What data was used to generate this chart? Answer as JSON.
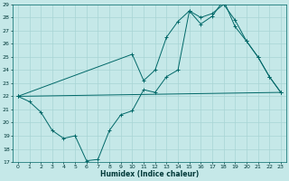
{
  "xlabel": "Humidex (Indice chaleur)",
  "bg_color": "#c5e8e8",
  "grid_color": "#a8d4d4",
  "line_color": "#006868",
  "ylim": [
    17,
    29
  ],
  "xlim": [
    -0.5,
    23.5
  ],
  "yticks": [
    17,
    18,
    19,
    20,
    21,
    22,
    23,
    24,
    25,
    26,
    27,
    28,
    29
  ],
  "xticks": [
    0,
    1,
    2,
    3,
    4,
    5,
    6,
    7,
    8,
    9,
    10,
    11,
    12,
    13,
    14,
    15,
    16,
    17,
    18,
    19,
    20,
    21,
    22,
    23
  ],
  "series1_x": [
    0,
    1,
    2,
    3,
    4,
    5,
    6,
    7,
    8,
    9,
    10,
    11,
    12,
    13,
    14,
    15,
    16,
    17,
    18,
    19,
    20,
    21,
    22,
    23
  ],
  "series1_y": [
    22,
    21.6,
    20.8,
    19.4,
    18.8,
    19.0,
    17.1,
    17.2,
    19.4,
    20.6,
    20.9,
    22.5,
    22.3,
    23.5,
    24.0,
    28.5,
    27.5,
    28.1,
    29.3,
    27.3,
    26.2,
    25.0,
    23.5,
    22.3
  ],
  "series2_x": [
    0,
    23
  ],
  "series2_y": [
    22,
    22.3
  ],
  "series3_x": [
    0,
    10,
    11,
    12,
    13,
    14,
    15,
    16,
    17,
    18,
    19,
    20,
    21,
    22,
    23
  ],
  "series3_y": [
    22,
    25.2,
    23.2,
    24.0,
    26.5,
    27.7,
    28.5,
    28.0,
    28.3,
    29.0,
    27.8,
    26.2,
    25.0,
    23.5,
    22.3
  ]
}
